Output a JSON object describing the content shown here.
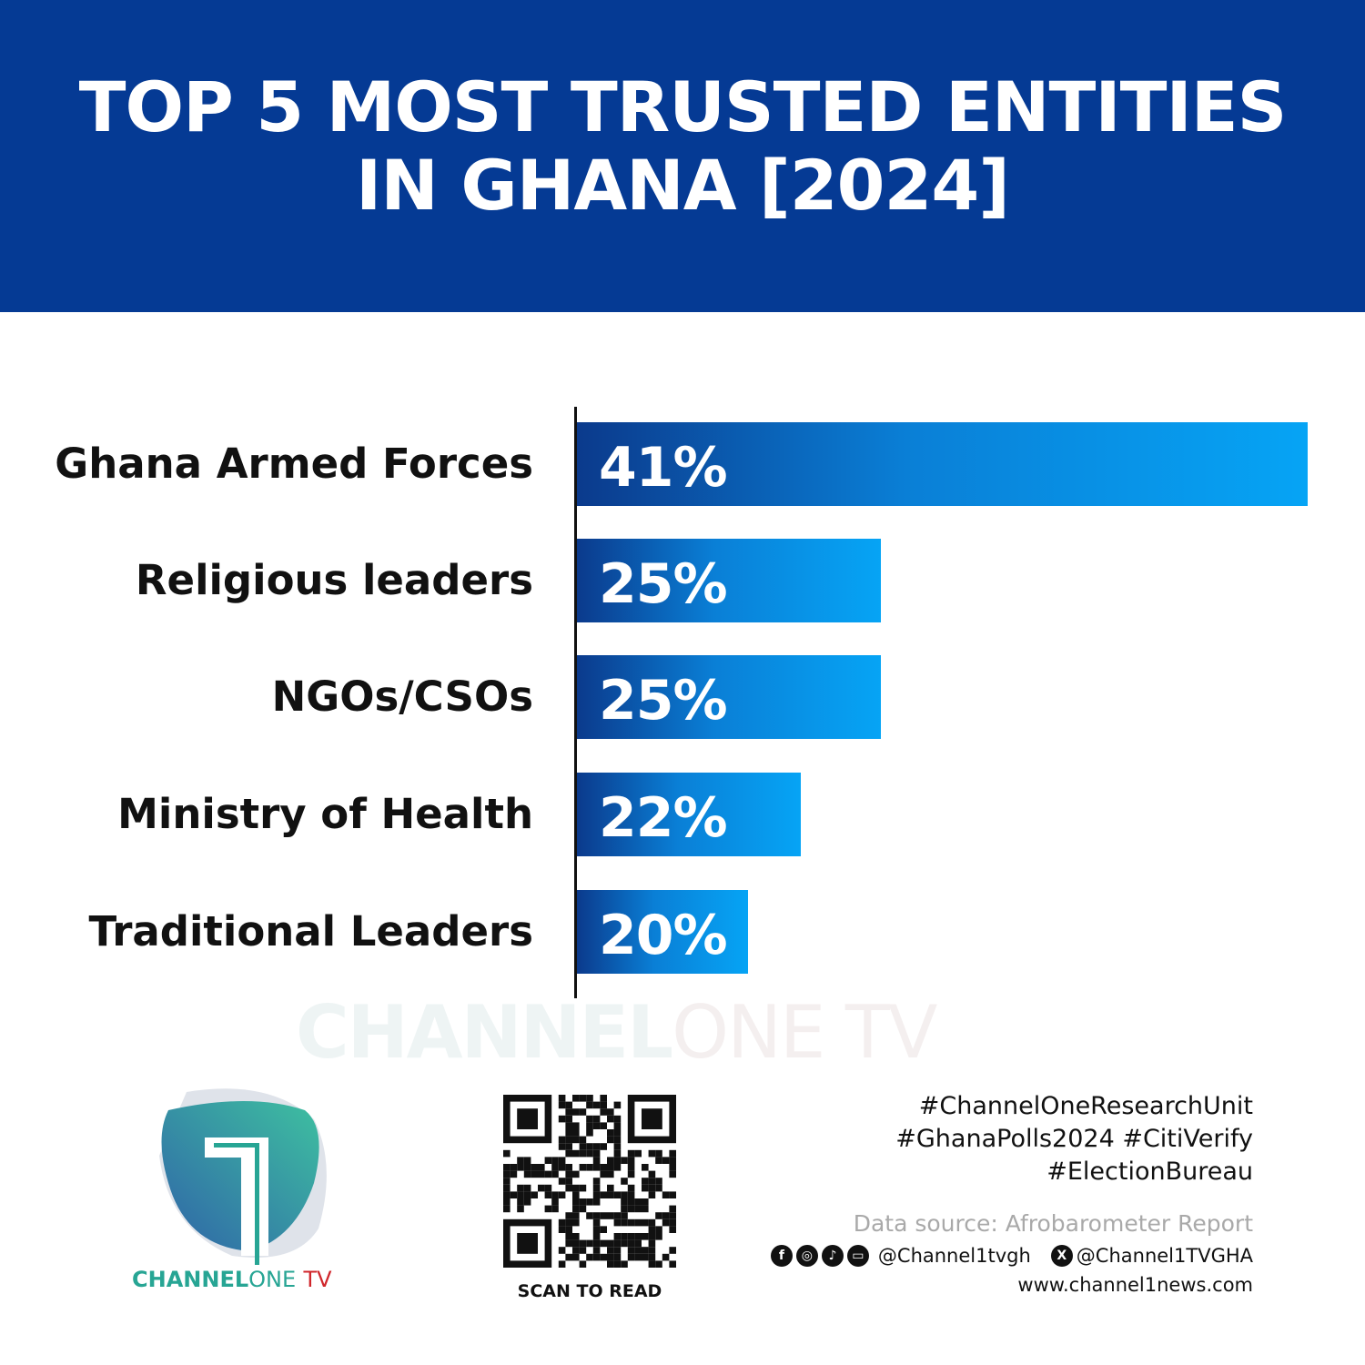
{
  "header": {
    "title_line1": "TOP 5 MOST TRUSTED ENTITIES",
    "title_line2": "IN GHANA [2024]"
  },
  "chart_data": {
    "type": "bar",
    "orientation": "horizontal",
    "categories": [
      "Ghana Armed Forces",
      "Religious leaders",
      "NGOs/CSOs",
      "Ministry of Health",
      "Traditional Leaders"
    ],
    "values": [
      41,
      25,
      25,
      22,
      20
    ],
    "data_labels": [
      "41%",
      "25%",
      "25%",
      "22%",
      "20%"
    ],
    "xlim": [
      13.6,
      41
    ],
    "grid": false,
    "bar_colors": [
      "#0b3a8c",
      "#06a4f5"
    ]
  },
  "watermark": {
    "bold": "CHANNEL",
    "light": "ONE TV"
  },
  "brand": {
    "bold": "CHANNEL",
    "light": "ONE",
    "tv": "TV"
  },
  "qr": {
    "caption": "SCAN TO READ"
  },
  "footer": {
    "tags": [
      "#ChannelOneResearchUnit",
      "#GhanaPolls2024 #CitiVerify",
      "#ElectionBureau"
    ],
    "source": "Data source: Afrobarometer Report",
    "social_handle": "@Channel1tvgh",
    "x_handle": "@Channel1TVGHA",
    "website": "www.channel1news.com",
    "icons": [
      "facebook-icon",
      "instagram-icon",
      "tiktok-icon",
      "youtube-icon",
      "x-icon"
    ]
  }
}
